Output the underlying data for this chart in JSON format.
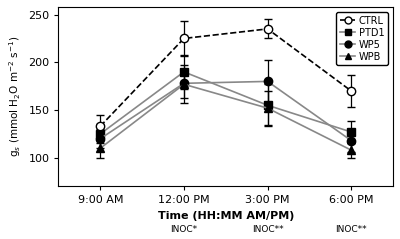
{
  "x_positions": [
    0,
    1,
    2,
    3
  ],
  "x_labels": [
    "9:00 AM",
    "12:00 PM",
    "3:00 PM",
    "6:00 PM"
  ],
  "series": {
    "CTRL": {
      "y": [
        133,
        225,
        235,
        170
      ],
      "yerr": [
        12,
        18,
        10,
        17
      ],
      "marker": "o",
      "markerfacecolor": "white",
      "markeredgecolor": "black",
      "linestyle": "--",
      "color": "black",
      "zorder": 4
    },
    "PTD1": {
      "y": [
        125,
        190,
        155,
        127
      ],
      "yerr": [
        10,
        18,
        22,
        12
      ],
      "marker": "s",
      "markerfacecolor": "black",
      "markeredgecolor": "black",
      "linestyle": "-",
      "color": "#888888",
      "zorder": 3
    },
    "WP5": {
      "y": [
        120,
        178,
        180,
        118
      ],
      "yerr": [
        10,
        15,
        22,
        12
      ],
      "marker": "o",
      "markerfacecolor": "black",
      "markeredgecolor": "black",
      "linestyle": "-",
      "color": "#888888",
      "zorder": 3
    },
    "WPB": {
      "y": [
        110,
        177,
        152,
        108
      ],
      "yerr": [
        10,
        20,
        18,
        8
      ],
      "marker": "^",
      "markerfacecolor": "black",
      "markeredgecolor": "black",
      "linestyle": "-",
      "color": "#888888",
      "zorder": 3
    }
  },
  "inoc_labels": [
    {
      "x": 1,
      "text": "INOC*"
    },
    {
      "x": 2,
      "text": "INOC**"
    },
    {
      "x": 3,
      "text": "INOC**"
    }
  ],
  "ylabel": "g$_s$ (mmol H$_2$O m$^{-2}$ s$^{-1}$)",
  "xlabel": "Time (HH:MM AM/PM)",
  "ylim": [
    70,
    258
  ],
  "yticks": [
    100,
    150,
    200,
    250
  ],
  "markersize": 6,
  "linewidth": 1.2,
  "capsize": 3
}
